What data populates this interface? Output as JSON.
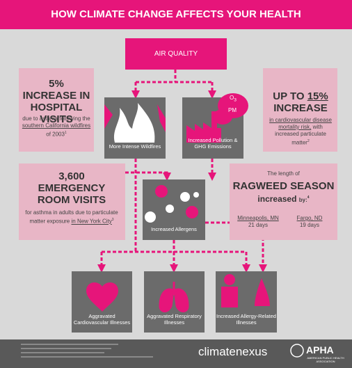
{
  "header": {
    "title": "HOW CLIMATE CHANGE AFFECTS YOUR HEALTH"
  },
  "top_node": {
    "label": "AIR QUALITY"
  },
  "nodes": [
    {
      "label": "More Intense Wildfires"
    },
    {
      "label": "Increased Pollution & GHG Emissions"
    },
    {
      "label": "Increased Allergens"
    },
    {
      "label": "Aggravated Cardiovascular Illnesses"
    },
    {
      "label": "Aggravated Respiratory Illnesses"
    },
    {
      "label": "Increased Allergy-Related Illnesses"
    }
  ],
  "icon_labels": {
    "ozone": "O",
    "ozone_sub": "3",
    "pm": "PM"
  },
  "stats": [
    {
      "headline": "5% INCREASE IN HOSPITAL VISITS",
      "text": "due to asthma following the",
      "link": "southern California wildfires",
      "text_end": "of 2003",
      "note": "1"
    },
    {
      "headline_pre": "UP TO",
      "headline_num": "15%",
      "headline_end": "INCREASE",
      "link": "in cardiovascular disease mortality risk,",
      "text": "with increased particulate matter",
      "note": "2"
    },
    {
      "headline": "3,600 EMERGENCY ROOM VISITS",
      "text": "for asthma in adults due to particulate matter exposure",
      "link": "in New York City",
      "note": "3"
    },
    {
      "intro": "The length of",
      "headline": "RAGWEED SEASON",
      "text": "increased",
      "text_end": "by:",
      "note": "4",
      "cities": [
        {
          "name": "Minneapolis, MN",
          "value": "21 days"
        },
        {
          "name": "Fargo, ND",
          "value": "19 days"
        }
      ]
    }
  ],
  "footer": {
    "brand": "climatenexus",
    "partner": "APHA",
    "partner_full": "AMERICAN PUBLIC HEALTH ASSOCIATION"
  }
}
